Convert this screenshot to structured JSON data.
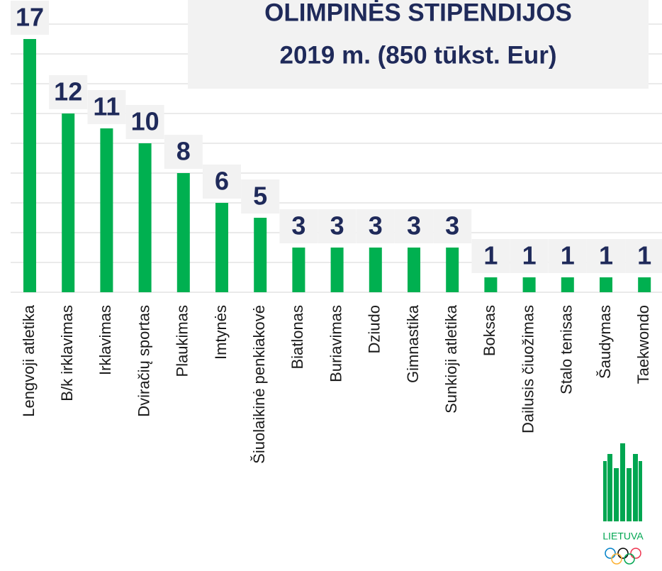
{
  "chart_data": {
    "type": "bar",
    "title": [
      "OLIMPINĖS STIPENDIJOS",
      "2019 m. (850 tūkst. Eur)"
    ],
    "categories": [
      "Lengvoji atletika",
      "B/k irklavimas",
      "Irklavimas",
      "Dviračių sportas",
      "Plaukimas",
      "Imtynės",
      "Šiuolaikinė penkiakovė",
      "Biatlonas",
      "Buriavimas",
      "Dziudo",
      "Gimnastika",
      "Sunkioji atletika",
      "Boksas",
      "Dailusis čiuožimas",
      "Stalo tenisas",
      "Šaudymas",
      "Taekwondo"
    ],
    "values": [
      17,
      12,
      11,
      10,
      8,
      6,
      5,
      3,
      3,
      3,
      3,
      3,
      1,
      1,
      1,
      1,
      1
    ],
    "color": "#00b050",
    "ylim": [
      0,
      18
    ],
    "yticks": [
      0,
      2,
      4,
      6,
      8,
      10,
      12,
      14,
      16,
      18
    ],
    "grid": true
  },
  "logo": {
    "text": "LIETUVA"
  }
}
